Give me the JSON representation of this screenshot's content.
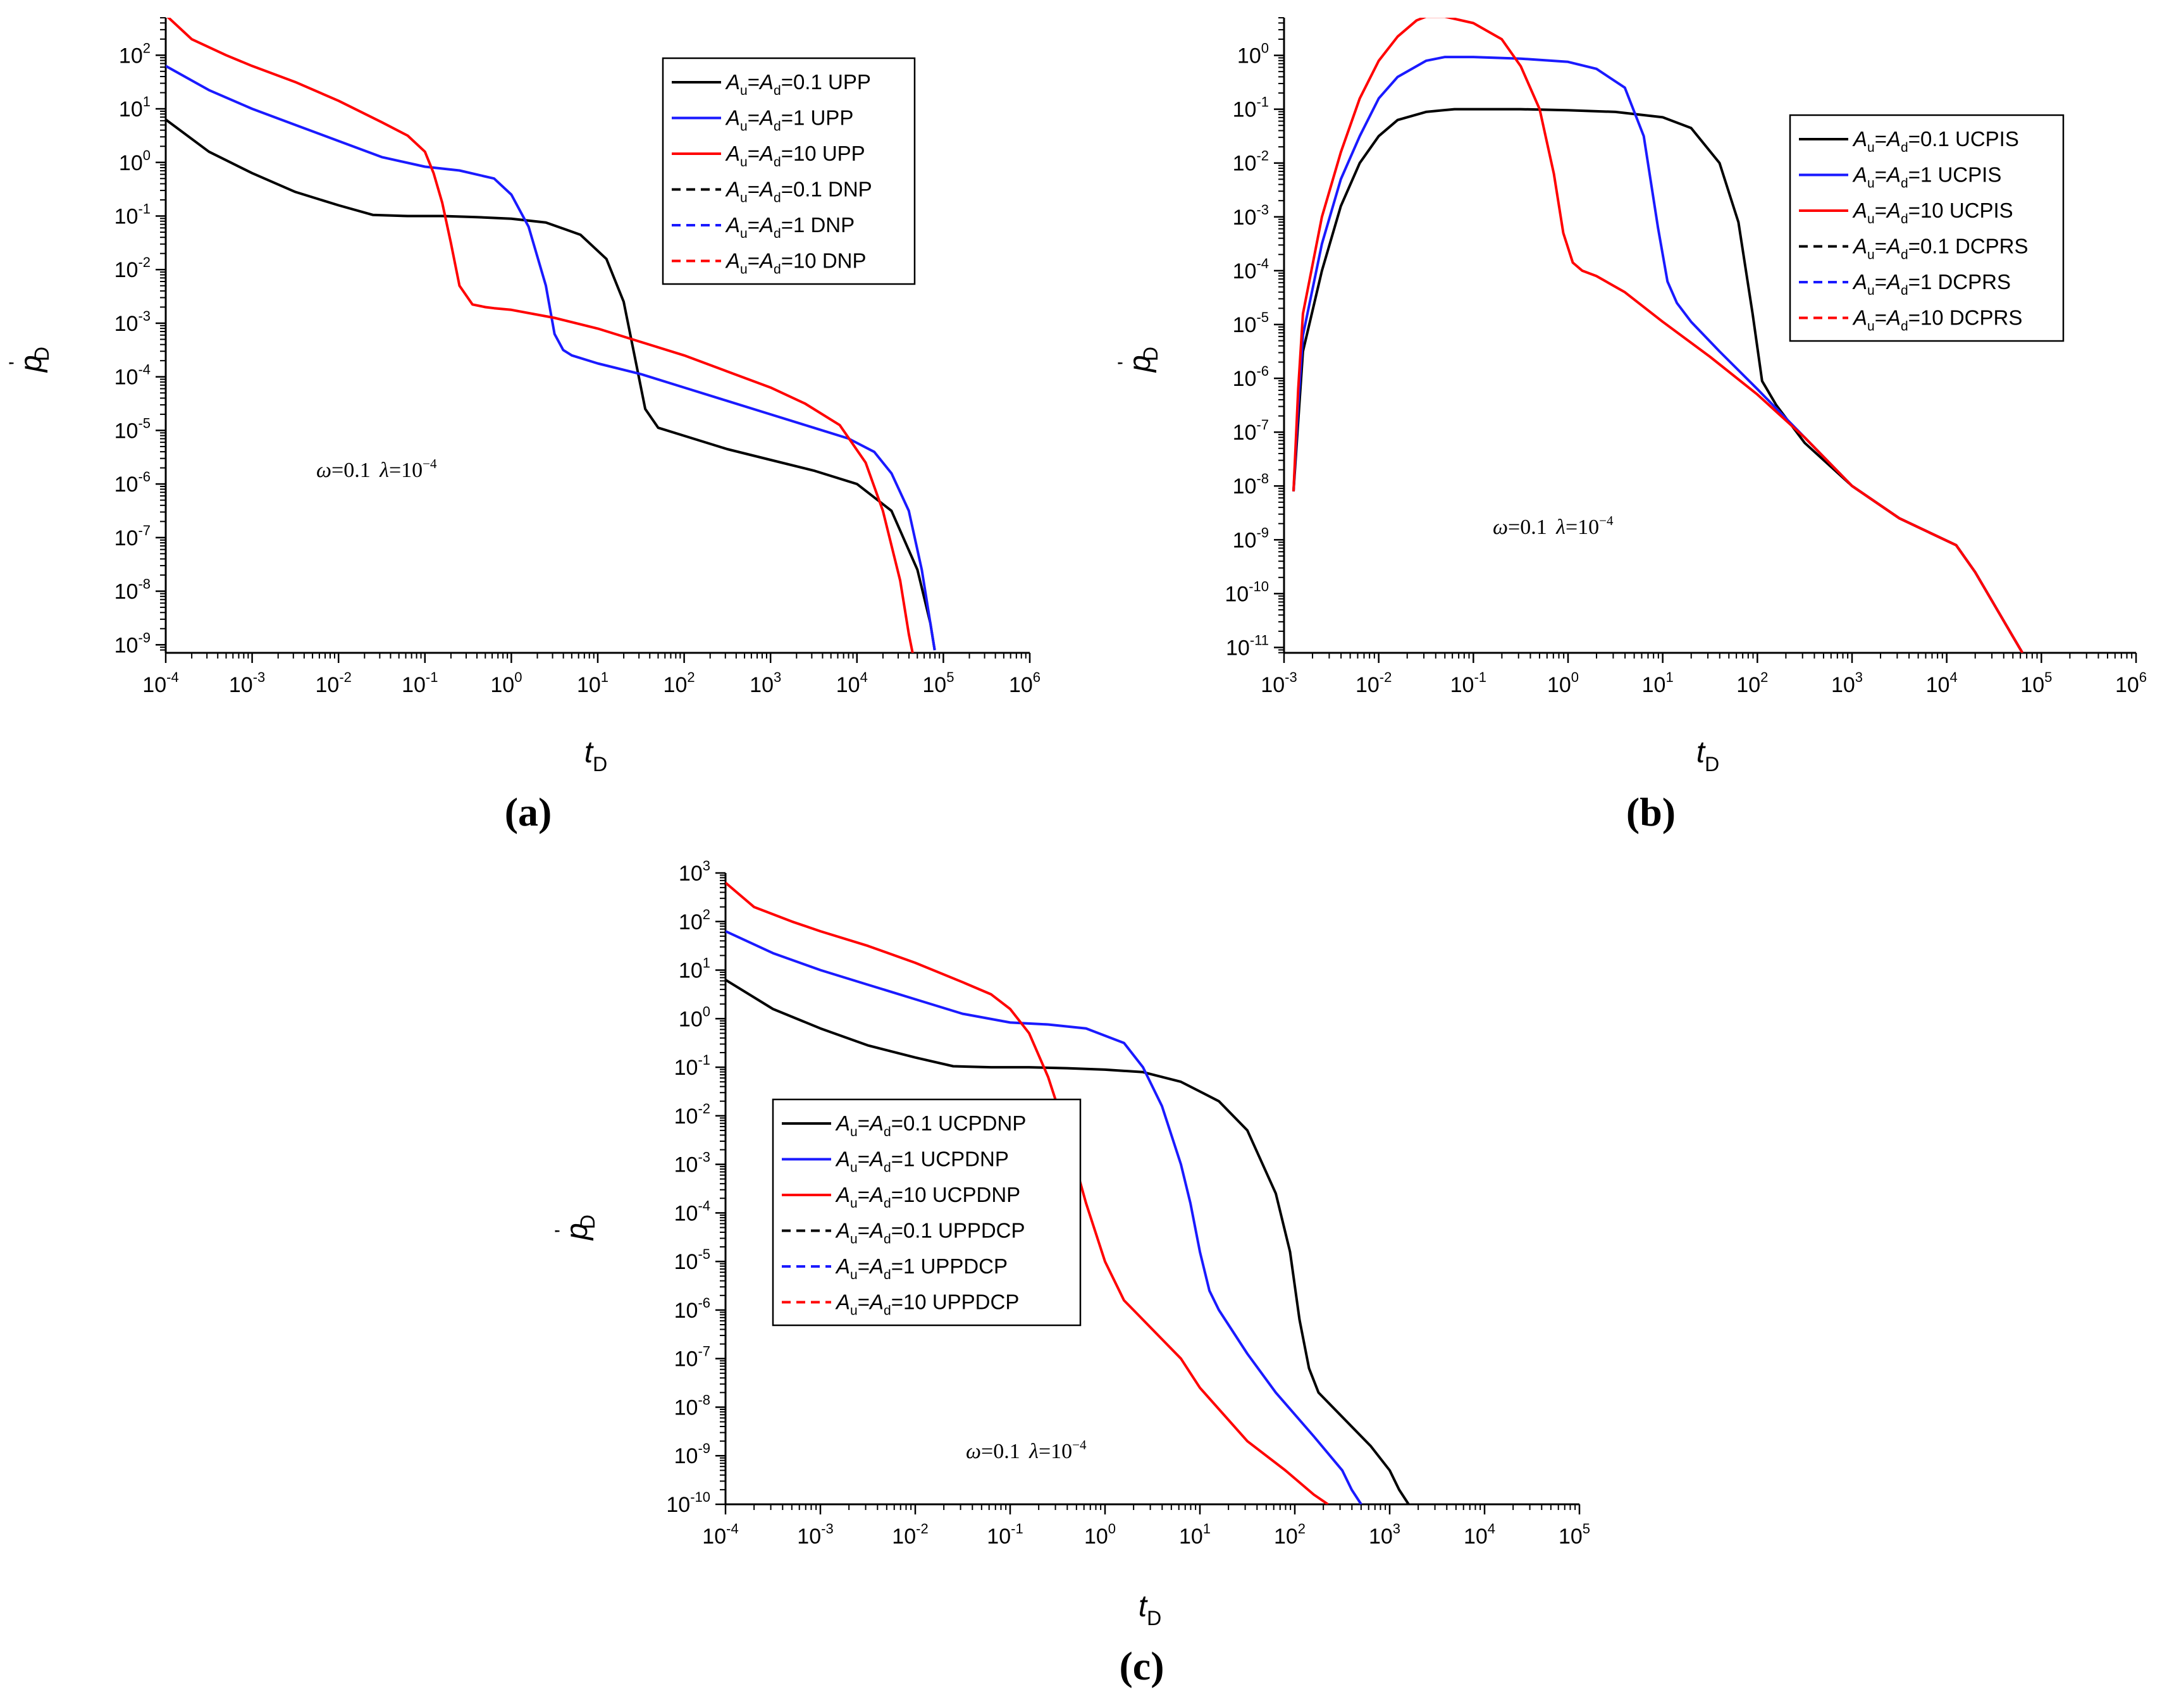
{
  "colors": {
    "black": "#000000",
    "blue": "#1a1aff",
    "red": "#ff0000"
  },
  "chart_data": [
    {
      "type": "line",
      "id": "a",
      "panel_label": "(a)",
      "xlabel": "t",
      "xlabel_sub": "D",
      "ylabel": "p",
      "ylabel_mark": "'",
      "ylabel_sub": "D",
      "x_scale": "log",
      "y_scale": "log",
      "xlim_exp": [
        -4,
        6
      ],
      "ylim_exp": [
        -9.15,
        2.7
      ],
      "x_tick_exps": [
        -4,
        -3,
        -2,
        -1,
        0,
        1,
        2,
        3,
        4,
        5,
        6
      ],
      "y_tick_exps": [
        -9,
        -8,
        -7,
        -6,
        -5,
        -4,
        -3,
        -2,
        -1,
        0,
        1,
        2
      ],
      "annotation": {
        "omega": "ω",
        "omega_val": "=0.1 ",
        "lambda": "λ",
        "lambda_val": "=10",
        "lambda_exp": "−4"
      },
      "legend": {
        "position": "top-right",
        "entries": [
          {
            "a": "A",
            "u": "u",
            "eq": "=",
            "d": "d",
            "rest": "=0.1 UPP",
            "color": "black",
            "dash": "solid"
          },
          {
            "a": "A",
            "u": "u",
            "eq": "=",
            "d": "d",
            "rest": "=1 UPP",
            "color": "blue",
            "dash": "solid"
          },
          {
            "a": "A",
            "u": "u",
            "eq": "=",
            "d": "d",
            "rest": "=10 UPP",
            "color": "red",
            "dash": "solid"
          },
          {
            "a": "A",
            "u": "u",
            "eq": "=",
            "d": "d",
            "rest": "=0.1 DNP",
            "color": "black",
            "dash": "dashed"
          },
          {
            "a": "A",
            "u": "u",
            "eq": "=",
            "d": "d",
            "rest": "=1 DNP",
            "color": "blue",
            "dash": "dashed"
          },
          {
            "a": "A",
            "u": "u",
            "eq": "=",
            "d": "d",
            "rest": "=10 DNP",
            "color": "red",
            "dash": "dashed"
          }
        ]
      },
      "series": [
        {
          "name": "Au=Ad=0.1",
          "color": "black",
          "x_log": [
            -4.0,
            -3.5,
            -3.0,
            -2.5,
            -2.0,
            -1.6,
            -1.2,
            -0.8,
            -0.4,
            0.0,
            0.4,
            0.8,
            1.1,
            1.3,
            1.45,
            1.55,
            1.7,
            2.0,
            2.5,
            3.0,
            3.5,
            4.0,
            4.4,
            4.7,
            4.85,
            4.9
          ],
          "y_log": [
            0.8,
            0.2,
            -0.2,
            -0.55,
            -0.8,
            -0.98,
            -1.0,
            -1.0,
            -1.02,
            -1.05,
            -1.12,
            -1.35,
            -1.8,
            -2.6,
            -3.8,
            -4.6,
            -4.95,
            -5.1,
            -5.35,
            -5.55,
            -5.75,
            -6.0,
            -6.5,
            -7.6,
            -8.6,
            -9.1
          ]
        },
        {
          "name": "Au=Ad=1",
          "color": "blue",
          "x_log": [
            -4.0,
            -3.5,
            -3.0,
            -2.5,
            -2.0,
            -1.5,
            -1.0,
            -0.6,
            -0.2,
            0.0,
            0.2,
            0.4,
            0.5,
            0.6,
            0.7,
            1.0,
            1.5,
            2.0,
            2.5,
            3.0,
            3.5,
            3.9,
            4.2,
            4.4,
            4.6,
            4.75,
            4.9
          ],
          "y_log": [
            1.8,
            1.35,
            1.0,
            0.7,
            0.4,
            0.1,
            -0.08,
            -0.15,
            -0.3,
            -0.6,
            -1.2,
            -2.3,
            -3.2,
            -3.5,
            -3.6,
            -3.75,
            -3.95,
            -4.2,
            -4.45,
            -4.7,
            -4.95,
            -5.15,
            -5.4,
            -5.8,
            -6.5,
            -7.6,
            -9.1
          ]
        },
        {
          "name": "Au=Ad=10",
          "color": "red",
          "x_log": [
            -4.0,
            -3.7,
            -3.3,
            -3.0,
            -2.5,
            -2.0,
            -1.5,
            -1.2,
            -1.0,
            -0.9,
            -0.8,
            -0.7,
            -0.6,
            -0.45,
            -0.3,
            -0.2,
            0.0,
            0.5,
            1.0,
            1.5,
            2.0,
            2.5,
            3.0,
            3.4,
            3.8,
            4.1,
            4.3,
            4.5,
            4.6,
            4.65
          ],
          "y_log": [
            2.75,
            2.3,
            2.0,
            1.8,
            1.5,
            1.15,
            0.75,
            0.5,
            0.2,
            -0.2,
            -0.75,
            -1.5,
            -2.3,
            -2.65,
            -2.7,
            -2.72,
            -2.75,
            -2.9,
            -3.1,
            -3.35,
            -3.6,
            -3.9,
            -4.2,
            -4.5,
            -4.9,
            -5.6,
            -6.5,
            -7.8,
            -8.8,
            -9.2
          ]
        }
      ]
    },
    {
      "type": "line",
      "id": "b",
      "panel_label": "(b)",
      "xlabel": "t",
      "xlabel_sub": "D",
      "ylabel": "p",
      "ylabel_mark": "'",
      "ylabel_sub": "D",
      "x_scale": "log",
      "y_scale": "log",
      "xlim_exp": [
        -3,
        6
      ],
      "ylim_exp": [
        -11.1,
        0.7
      ],
      "x_tick_exps": [
        -3,
        -2,
        -1,
        0,
        1,
        2,
        3,
        4,
        5,
        6
      ],
      "y_tick_exps": [
        -11,
        -10,
        -9,
        -8,
        -7,
        -6,
        -5,
        -4,
        -3,
        -2,
        -1,
        0
      ],
      "annotation": {
        "omega": "ω",
        "omega_val": "=0.1 ",
        "lambda": "λ",
        "lambda_val": "=10",
        "lambda_exp": "−4"
      },
      "legend": {
        "position": "top-right",
        "entries": [
          {
            "a": "A",
            "u": "u",
            "eq": "=",
            "d": "d",
            "rest": "=0.1 UCPIS",
            "color": "black",
            "dash": "solid"
          },
          {
            "a": "A",
            "u": "u",
            "eq": "=",
            "d": "d",
            "rest": "=1 UCPIS",
            "color": "blue",
            "dash": "solid"
          },
          {
            "a": "A",
            "u": "u",
            "eq": "=",
            "d": "d",
            "rest": "=10 UCPIS",
            "color": "red",
            "dash": "solid"
          },
          {
            "a": "A",
            "u": "u",
            "eq": "=",
            "d": "d",
            "rest": "=0.1 DCPRS",
            "color": "black",
            "dash": "dashed"
          },
          {
            "a": "A",
            "u": "u",
            "eq": "=",
            "d": "d",
            "rest": "=1 DCPRS",
            "color": "blue",
            "dash": "dashed"
          },
          {
            "a": "A",
            "u": "u",
            "eq": "=",
            "d": "d",
            "rest": "=10 DCPRS",
            "color": "red",
            "dash": "dashed"
          }
        ]
      },
      "series": [
        {
          "name": "Au=Ad=0.1",
          "color": "black",
          "x_log": [
            -2.9,
            -2.85,
            -2.8,
            -2.6,
            -2.4,
            -2.2,
            -2.0,
            -1.8,
            -1.5,
            -1.2,
            -1.0,
            -0.5,
            0.0,
            0.5,
            1.0,
            1.3,
            1.6,
            1.8,
            1.95,
            2.05,
            2.2,
            2.5,
            3.0,
            3.5,
            3.8,
            4.1,
            4.3,
            4.5,
            4.7,
            4.8
          ],
          "y_log": [
            -8.1,
            -6.8,
            -5.5,
            -4.0,
            -2.8,
            -2.0,
            -1.5,
            -1.2,
            -1.05,
            -1.0,
            -1.0,
            -1.0,
            -1.02,
            -1.05,
            -1.15,
            -1.35,
            -2.0,
            -3.1,
            -4.8,
            -6.05,
            -6.5,
            -7.2,
            -8.0,
            -8.6,
            -8.85,
            -9.1,
            -9.6,
            -10.2,
            -10.8,
            -11.1
          ]
        },
        {
          "name": "Au=Ad=1",
          "color": "blue",
          "x_log": [
            -2.9,
            -2.85,
            -2.8,
            -2.6,
            -2.4,
            -2.2,
            -2.0,
            -1.8,
            -1.5,
            -1.3,
            -1.0,
            -0.5,
            0.0,
            0.3,
            0.6,
            0.8,
            0.95,
            1.05,
            1.15,
            1.3,
            1.6,
            2.0,
            2.5,
            3.0,
            3.5,
            3.8,
            4.1,
            4.3,
            4.5,
            4.7,
            4.8
          ],
          "y_log": [
            -8.1,
            -6.5,
            -5.2,
            -3.5,
            -2.3,
            -1.5,
            -0.8,
            -0.4,
            -0.1,
            -0.03,
            -0.03,
            -0.06,
            -0.12,
            -0.25,
            -0.6,
            -1.5,
            -3.2,
            -4.2,
            -4.6,
            -4.95,
            -5.5,
            -6.2,
            -7.1,
            -8.0,
            -8.6,
            -8.85,
            -9.1,
            -9.6,
            -10.2,
            -10.8,
            -11.1
          ]
        },
        {
          "name": "Au=Ad=10",
          "color": "red",
          "x_log": [
            -2.9,
            -2.85,
            -2.8,
            -2.6,
            -2.4,
            -2.2,
            -2.0,
            -1.8,
            -1.6,
            -1.5,
            -1.3,
            -1.0,
            -0.7,
            -0.5,
            -0.3,
            -0.15,
            -0.05,
            0.05,
            0.15,
            0.3,
            0.6,
            1.0,
            1.5,
            2.0,
            2.5,
            3.0,
            3.5,
            3.8,
            4.1,
            4.3,
            4.5,
            4.7,
            4.8
          ],
          "y_log": [
            -8.1,
            -6.2,
            -4.8,
            -3.0,
            -1.8,
            -0.8,
            -0.1,
            0.35,
            0.65,
            0.72,
            0.72,
            0.6,
            0.3,
            -0.2,
            -1.0,
            -2.2,
            -3.3,
            -3.85,
            -4.0,
            -4.1,
            -4.4,
            -4.95,
            -5.6,
            -6.3,
            -7.1,
            -8.0,
            -8.6,
            -8.85,
            -9.1,
            -9.6,
            -10.2,
            -10.8,
            -11.1
          ]
        }
      ]
    },
    {
      "type": "line",
      "id": "c",
      "panel_label": "(c)",
      "xlabel": "t",
      "xlabel_sub": "D",
      "ylabel": "p",
      "ylabel_mark": "'",
      "ylabel_sub": "D",
      "x_scale": "log",
      "y_scale": "log",
      "xlim_exp": [
        -4,
        5
      ],
      "ylim_exp": [
        -10,
        3
      ],
      "x_tick_exps": [
        -4,
        -3,
        -2,
        -1,
        0,
        1,
        2,
        3,
        4,
        5
      ],
      "y_tick_exps": [
        -10,
        -9,
        -8,
        -7,
        -6,
        -5,
        -4,
        -3,
        -2,
        -1,
        0,
        1,
        2,
        3
      ],
      "annotation": {
        "omega": "ω",
        "omega_val": "=0.1 ",
        "lambda": "λ",
        "lambda_val": "=10",
        "lambda_exp": "−4"
      },
      "legend": {
        "position": "center-left",
        "entries": [
          {
            "a": "A",
            "u": "u",
            "eq": "=",
            "d": "d",
            "rest": "=0.1 UCPDNP",
            "color": "black",
            "dash": "solid"
          },
          {
            "a": "A",
            "u": "u",
            "eq": "=",
            "d": "d",
            "rest": "=1 UCPDNP",
            "color": "blue",
            "dash": "solid"
          },
          {
            "a": "A",
            "u": "u",
            "eq": "=",
            "d": "d",
            "rest": "=10 UCPDNP",
            "color": "red",
            "dash": "solid"
          },
          {
            "a": "A",
            "u": "u",
            "eq": "=",
            "d": "d",
            "rest": "=0.1 UPPDCP",
            "color": "black",
            "dash": "dashed"
          },
          {
            "a": "A",
            "u": "u",
            "eq": "=",
            "d": "d",
            "rest": "=1 UPPDCP",
            "color": "blue",
            "dash": "dashed"
          },
          {
            "a": "A",
            "u": "u",
            "eq": "=",
            "d": "d",
            "rest": "=10 UPPDCP",
            "color": "red",
            "dash": "dashed"
          }
        ]
      },
      "series": [
        {
          "name": "Au=Ad=0.1",
          "color": "black",
          "x_log": [
            -4.0,
            -3.5,
            -3.0,
            -2.5,
            -2.0,
            -1.6,
            -1.2,
            -0.8,
            -0.4,
            0.0,
            0.4,
            0.8,
            1.2,
            1.5,
            1.8,
            1.95,
            2.05,
            2.15,
            2.25,
            2.5,
            2.8,
            3.0,
            3.1,
            3.2
          ],
          "y_log": [
            0.8,
            0.2,
            -0.2,
            -0.55,
            -0.8,
            -0.98,
            -1.0,
            -1.0,
            -1.02,
            -1.05,
            -1.1,
            -1.3,
            -1.7,
            -2.3,
            -3.6,
            -4.8,
            -6.2,
            -7.2,
            -7.7,
            -8.2,
            -8.8,
            -9.3,
            -9.7,
            -10.0
          ]
        },
        {
          "name": "Au=Ad=1",
          "color": "blue",
          "x_log": [
            -4.0,
            -3.5,
            -3.0,
            -2.5,
            -2.0,
            -1.5,
            -1.0,
            -0.6,
            -0.2,
            0.2,
            0.4,
            0.6,
            0.8,
            0.9,
            1.0,
            1.1,
            1.2,
            1.5,
            1.8,
            2.2,
            2.5,
            2.6,
            2.7
          ],
          "y_log": [
            1.8,
            1.35,
            1.0,
            0.7,
            0.4,
            0.1,
            -0.08,
            -0.12,
            -0.2,
            -0.5,
            -1.0,
            -1.8,
            -3.0,
            -3.8,
            -4.8,
            -5.6,
            -6.0,
            -6.9,
            -7.7,
            -8.6,
            -9.3,
            -9.7,
            -10.0
          ]
        },
        {
          "name": "Au=Ad=10",
          "color": "red",
          "x_log": [
            -4.0,
            -3.7,
            -3.3,
            -3.0,
            -2.5,
            -2.0,
            -1.5,
            -1.2,
            -1.0,
            -0.8,
            -0.6,
            -0.4,
            -0.2,
            0.0,
            0.2,
            0.3,
            0.5,
            0.8,
            1.0,
            1.5,
            1.9,
            2.2,
            2.35
          ],
          "y_log": [
            2.8,
            2.3,
            2.0,
            1.8,
            1.5,
            1.15,
            0.75,
            0.5,
            0.2,
            -0.3,
            -1.2,
            -2.4,
            -3.8,
            -5.0,
            -5.8,
            -6.0,
            -6.4,
            -7.0,
            -7.6,
            -8.7,
            -9.3,
            -9.8,
            -10.0
          ]
        }
      ]
    }
  ]
}
